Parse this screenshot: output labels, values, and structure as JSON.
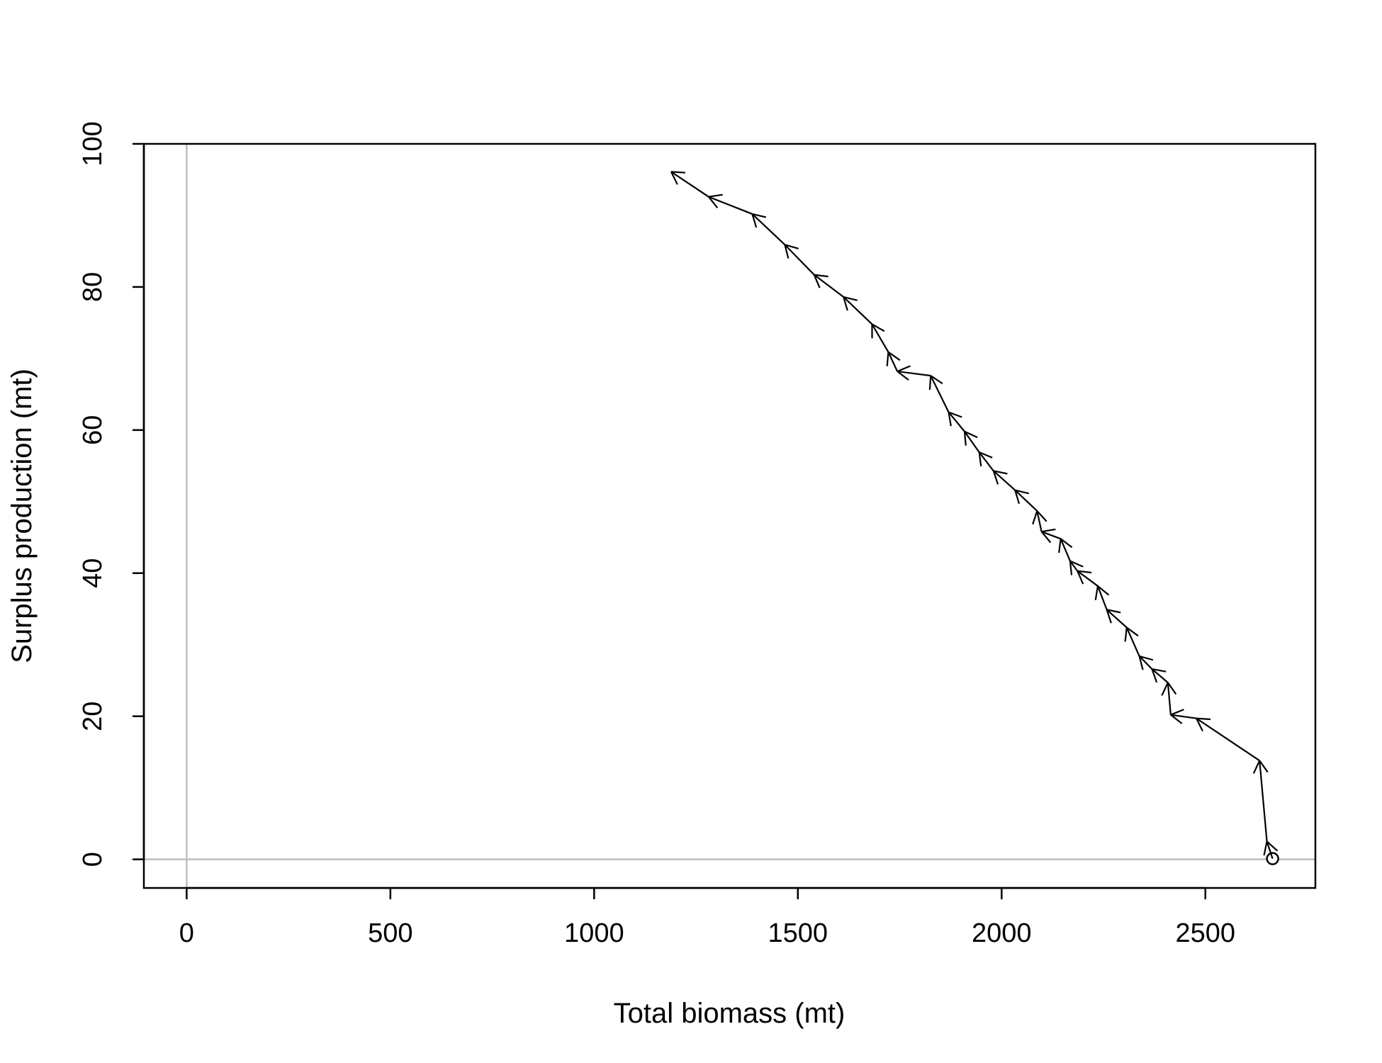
{
  "chart_data": {
    "type": "line",
    "title": "",
    "xlabel": "Total biomass (mt)",
    "ylabel": "Surplus production (mt)",
    "xlim": [
      -105,
      2770
    ],
    "ylim": [
      -4,
      100
    ],
    "x_ticks": [
      0,
      500,
      1000,
      1500,
      2000,
      2500
    ],
    "y_ticks": [
      0,
      20,
      40,
      60,
      80,
      100
    ],
    "reference_lines": {
      "x": 0,
      "y": 0,
      "color": "#bebebe"
    },
    "line_color": "#000000",
    "start_marker": "open-circle",
    "grid": false,
    "legend": "none",
    "series": [
      {
        "x": [
          2665,
          2651,
          2633,
          2478,
          2415,
          2408,
          2369,
          2338,
          2307,
          2258,
          2236,
          2186,
          2168,
          2145,
          2098,
          2087,
          2033,
          1980,
          1945,
          1909,
          1870,
          1826,
          1744,
          1722,
          1682,
          1612,
          1540,
          1468,
          1388,
          1281,
          1189
        ],
        "y": [
          0.1,
          2.5,
          13.8,
          19.7,
          20.2,
          24.7,
          26.6,
          28.4,
          32.4,
          34.9,
          38.2,
          40.3,
          41.7,
          44.8,
          45.8,
          48.7,
          51.6,
          54.3,
          56.9,
          59.8,
          62.5,
          67.6,
          68.2,
          70.9,
          74.8,
          78.6,
          81.7,
          85.9,
          90.2,
          92.6,
          96.1
        ]
      }
    ]
  }
}
